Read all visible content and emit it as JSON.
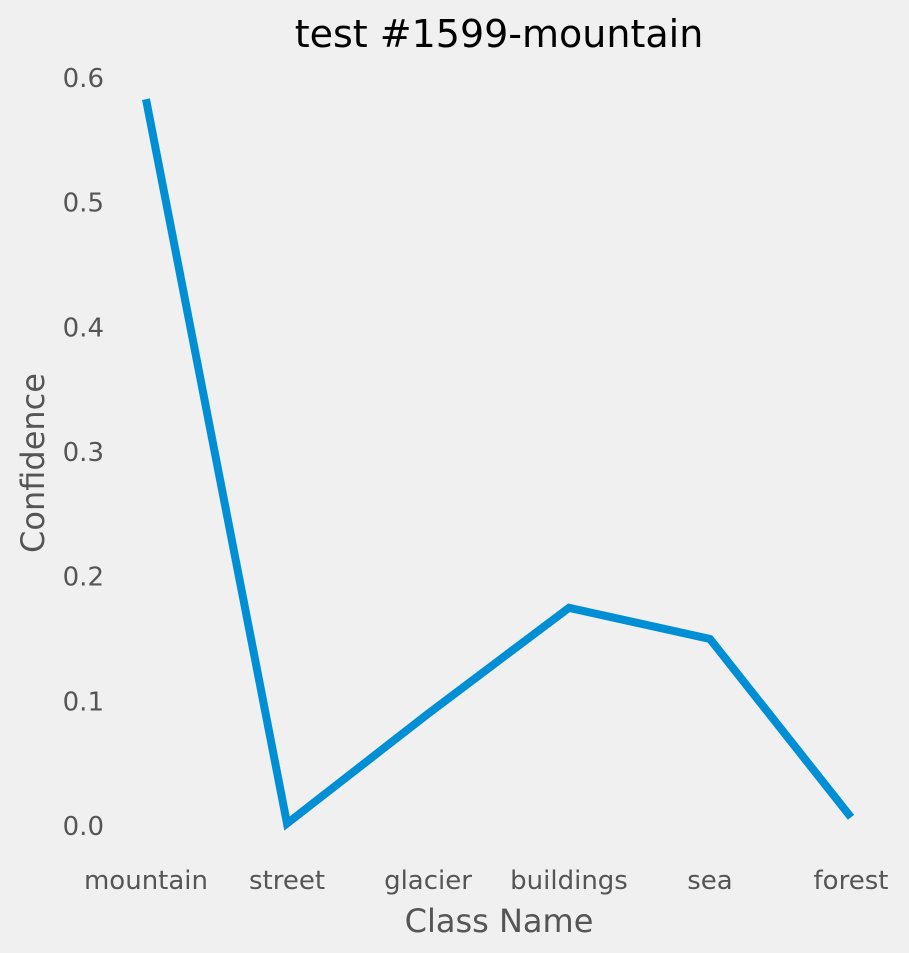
{
  "chart_data": {
    "type": "line",
    "title": "test #1599-mountain",
    "xlabel": "Class Name",
    "ylabel": "Confidence",
    "categories": [
      "mountain",
      "street",
      "glacier",
      "buildings",
      "sea",
      "forest"
    ],
    "series": [
      {
        "values": [
          0.583,
          0.002,
          0.09,
          0.175,
          0.15,
          0.007
        ]
      }
    ],
    "yticks": [
      "0.0",
      "0.1",
      "0.2",
      "0.3",
      "0.4",
      "0.5",
      "0.6"
    ],
    "ylim": [
      0,
      0.6
    ],
    "grid": false,
    "line_color": "#008fd5",
    "background_color": "#f0f0f0"
  }
}
